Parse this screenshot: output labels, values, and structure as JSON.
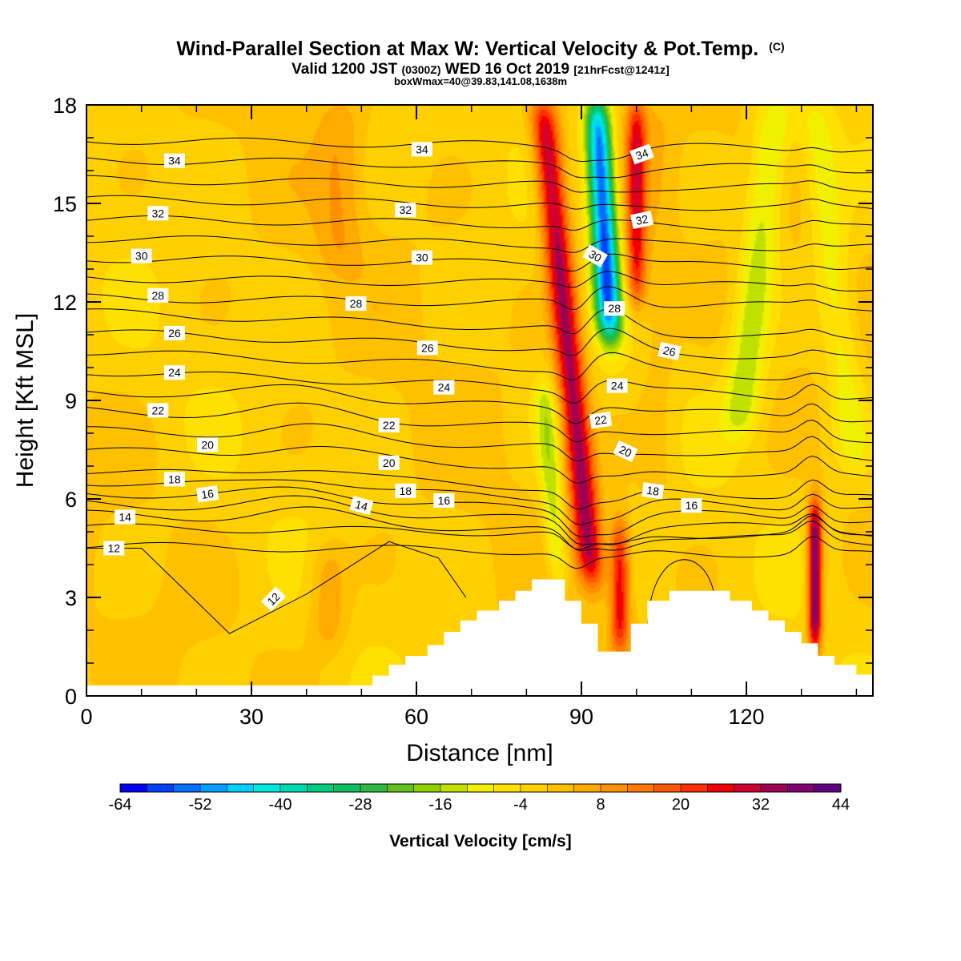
{
  "title": {
    "main": "Wind-Parallel Section at Max W: Vertical Velocity & Pot.Temp.",
    "main_suffix": "(C)",
    "valid_prefix": "Valid 1200 JST",
    "valid_utc": "(0300Z)",
    "valid_date": "WED 16 Oct 2019",
    "valid_fcst": "[21hrFcst@1241z]",
    "box_info": "boxWmax=40@39.83,141.08,1638m"
  },
  "chart_data": {
    "type": "heatmap",
    "xlabel": "Distance [nm]",
    "ylabel": "Height [Kft MSL]",
    "xlim": [
      0,
      143
    ],
    "ylim": [
      0,
      18
    ],
    "x_ticks": [
      0,
      30,
      60,
      90,
      120
    ],
    "y_ticks": [
      0,
      3,
      6,
      9,
      12,
      15,
      18
    ],
    "x_tick_labels": [
      "0",
      "30",
      "60",
      "90",
      "120"
    ],
    "y_tick_labels": [
      "0",
      "3",
      "6",
      "9",
      "12",
      "15",
      "18"
    ],
    "colorbar": {
      "title": "Vertical Velocity [cm/s]",
      "min": -64,
      "max": 44,
      "step": 4,
      "tick_values": [
        -64,
        -52,
        -40,
        -28,
        -16,
        -4,
        8,
        20,
        32,
        44
      ],
      "tick_labels": [
        "-64",
        "-52",
        "-40",
        "-28",
        "-16",
        "-4",
        "8",
        "20",
        "32",
        "44"
      ],
      "colors": [
        "#0000f0",
        "#0040f8",
        "#0070ff",
        "#00a0ff",
        "#00d0ff",
        "#00e8e0",
        "#00d8b0",
        "#00cc80",
        "#10c060",
        "#30b840",
        "#60c020",
        "#90d000",
        "#c0e000",
        "#f0f000",
        "#ffe000",
        "#ffd000",
        "#ffc000",
        "#ffaa00",
        "#ff9000",
        "#ff7800",
        "#ff5800",
        "#ff3000",
        "#f00000",
        "#d00030",
        "#a00050",
        "#800070",
        "#600080"
      ]
    },
    "terrain_profile": [
      [
        0,
        0.32
      ],
      [
        52,
        0.32
      ],
      [
        52,
        0.62
      ],
      [
        55,
        0.62
      ],
      [
        55,
        0.95
      ],
      [
        58,
        0.95
      ],
      [
        58,
        1.22
      ],
      [
        62,
        1.22
      ],
      [
        62,
        1.55
      ],
      [
        65,
        1.55
      ],
      [
        65,
        1.95
      ],
      [
        68,
        1.95
      ],
      [
        68,
        2.3
      ],
      [
        71,
        2.3
      ],
      [
        71,
        2.6
      ],
      [
        75,
        2.6
      ],
      [
        75,
        2.9
      ],
      [
        78,
        2.9
      ],
      [
        78,
        3.2
      ],
      [
        81,
        3.2
      ],
      [
        81,
        3.55
      ],
      [
        87,
        3.55
      ],
      [
        87,
        2.9
      ],
      [
        90,
        2.9
      ],
      [
        90,
        2.2
      ],
      [
        93,
        2.2
      ],
      [
        93,
        1.35
      ],
      [
        99,
        1.35
      ],
      [
        99,
        2.2
      ],
      [
        102,
        2.2
      ],
      [
        102,
        2.9
      ],
      [
        106,
        2.9
      ],
      [
        106,
        3.2
      ],
      [
        117,
        3.2
      ],
      [
        117,
        2.9
      ],
      [
        121,
        2.9
      ],
      [
        121,
        2.6
      ],
      [
        124,
        2.6
      ],
      [
        124,
        2.3
      ],
      [
        127,
        2.3
      ],
      [
        127,
        1.95
      ],
      [
        130,
        1.95
      ],
      [
        130,
        1.6
      ],
      [
        133,
        1.6
      ],
      [
        133,
        1.22
      ],
      [
        136,
        1.22
      ],
      [
        136,
        0.95
      ],
      [
        140,
        0.95
      ],
      [
        140,
        0.65
      ],
      [
        143,
        0.65
      ]
    ],
    "w_features": [
      {
        "x": 87.5,
        "y_bottom": 3.5,
        "y_top": 18,
        "tilt_kft": 0.28,
        "w": 36,
        "sigma_nm": 1.8
      },
      {
        "x": 94,
        "y_bottom": 11,
        "y_top": 18,
        "tilt_kft": 0.15,
        "w": -55,
        "sigma_nm": 1.6
      },
      {
        "x": 100,
        "y_bottom": 12,
        "y_top": 18,
        "tilt_kft": 0,
        "w": 28,
        "sigma_nm": 1.3
      },
      {
        "x": 84.5,
        "y_bottom": 3.5,
        "y_top": 9.5,
        "tilt_kft": 0.2,
        "w": -14,
        "sigma_nm": 1.5
      },
      {
        "x": 97,
        "y_bottom": 1.5,
        "y_top": 5.2,
        "tilt_kft": 0,
        "w": 28,
        "sigma_nm": 1.2
      },
      {
        "x": 132.5,
        "y_bottom": 1.5,
        "y_top": 5.8,
        "tilt_kft": 0,
        "w": 44,
        "sigma_nm": 0.9
      },
      {
        "x": 122,
        "y_bottom": 8,
        "y_top": 18,
        "tilt_kft": -0.3,
        "w": -14,
        "sigma_nm": 2.5
      },
      {
        "x": 136,
        "y_bottom": 7,
        "y_top": 18,
        "tilt_kft": 0.3,
        "w": -10,
        "sigma_nm": 2.5
      },
      {
        "x": 46,
        "y_bottom": 13,
        "y_top": 18,
        "tilt_kft": 0,
        "w": 8,
        "sigma_nm": 3
      },
      {
        "x": 44,
        "y_bottom": 1.5,
        "y_top": 4.5,
        "tilt_kft": 0,
        "w": 10,
        "sigma_nm": 2.5
      },
      {
        "x": 104,
        "y_bottom": 6,
        "y_top": 18,
        "tilt_kft": 0,
        "w": 4,
        "sigma_nm": 2.5
      }
    ],
    "theta_contour_levels": [
      12,
      13,
      14,
      15,
      16,
      17,
      18,
      19,
      20,
      21,
      22,
      23,
      24,
      25,
      26,
      27,
      28,
      29,
      30,
      31,
      32,
      33,
      34,
      35
    ],
    "theta_contour_labels": [
      {
        "text": "34",
        "x": 16,
        "y": 16.3,
        "angle": 0
      },
      {
        "text": "34",
        "x": 61,
        "y": 16.65,
        "angle": 0
      },
      {
        "text": "34",
        "x": 101,
        "y": 16.5,
        "angle": -20
      },
      {
        "text": "32",
        "x": 13,
        "y": 14.7,
        "angle": 0
      },
      {
        "text": "32",
        "x": 58,
        "y": 14.8,
        "angle": 0
      },
      {
        "text": "32",
        "x": 101,
        "y": 14.5,
        "angle": -12
      },
      {
        "text": "30",
        "x": 10,
        "y": 13.4,
        "angle": 0
      },
      {
        "text": "30",
        "x": 61,
        "y": 13.35,
        "angle": 0
      },
      {
        "text": "30",
        "x": 92.5,
        "y": 13.4,
        "angle": 30
      },
      {
        "text": "28",
        "x": 13,
        "y": 12.2,
        "angle": 0
      },
      {
        "text": "28",
        "x": 49,
        "y": 11.95,
        "angle": 0
      },
      {
        "text": "28",
        "x": 96,
        "y": 11.8,
        "angle": 0
      },
      {
        "text": "26",
        "x": 16,
        "y": 11.05,
        "angle": 0
      },
      {
        "text": "26",
        "x": 62,
        "y": 10.6,
        "angle": 0
      },
      {
        "text": "26",
        "x": 106,
        "y": 10.5,
        "angle": 12
      },
      {
        "text": "24",
        "x": 16,
        "y": 9.85,
        "angle": 0
      },
      {
        "text": "24",
        "x": 65,
        "y": 9.4,
        "angle": 0
      },
      {
        "text": "24",
        "x": 96.5,
        "y": 9.45,
        "angle": 0
      },
      {
        "text": "22",
        "x": 13,
        "y": 8.7,
        "angle": 0
      },
      {
        "text": "22",
        "x": 55,
        "y": 8.25,
        "angle": 0
      },
      {
        "text": "22",
        "x": 93.5,
        "y": 8.4,
        "angle": -8
      },
      {
        "text": "20",
        "x": 22,
        "y": 7.65,
        "angle": 0
      },
      {
        "text": "20",
        "x": 55,
        "y": 7.1,
        "angle": 0
      },
      {
        "text": "20",
        "x": 98,
        "y": 7.45,
        "angle": 25
      },
      {
        "text": "18",
        "x": 16,
        "y": 6.6,
        "angle": 0
      },
      {
        "text": "18",
        "x": 58,
        "y": 6.25,
        "angle": 0
      },
      {
        "text": "18",
        "x": 103,
        "y": 6.25,
        "angle": 8
      },
      {
        "text": "16",
        "x": 22,
        "y": 6.15,
        "angle": -8
      },
      {
        "text": "16",
        "x": 65,
        "y": 5.95,
        "angle": 0
      },
      {
        "text": "16",
        "x": 110,
        "y": 5.8,
        "angle": 0
      },
      {
        "text": "14",
        "x": 7,
        "y": 5.45,
        "angle": 0
      },
      {
        "text": "14",
        "x": 50,
        "y": 5.8,
        "angle": 15
      },
      {
        "text": "12",
        "x": 5,
        "y": 4.5,
        "angle": 0
      },
      {
        "text": "12",
        "x": 34,
        "y": 2.95,
        "angle": -45
      }
    ]
  }
}
